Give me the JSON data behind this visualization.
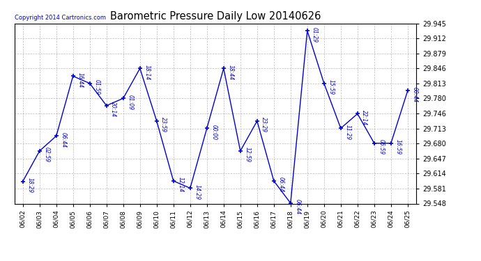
{
  "title": "Barometric Pressure Daily Low 20140626",
  "copyright": "Copyright 2014 Cartronics.com",
  "data_points": [
    {
      "date": "06/02",
      "time": "18:29",
      "value": 29.597
    },
    {
      "date": "06/03",
      "time": "02:59",
      "value": 29.664
    },
    {
      "date": "06/04",
      "time": "06:44",
      "value": 29.697
    },
    {
      "date": "06/05",
      "time": "16:44",
      "value": 29.829
    },
    {
      "date": "06/06",
      "time": "01:59",
      "value": 29.813
    },
    {
      "date": "06/07",
      "time": "20:14",
      "value": 29.764
    },
    {
      "date": "06/08",
      "time": "01:09",
      "value": 29.78
    },
    {
      "date": "06/09",
      "time": "18:14",
      "value": 29.846
    },
    {
      "date": "06/10",
      "time": "23:59",
      "value": 29.73
    },
    {
      "date": "06/11",
      "time": "12:14",
      "value": 29.598
    },
    {
      "date": "06/12",
      "time": "14:29",
      "value": 29.582
    },
    {
      "date": "06/13",
      "time": "00:00",
      "value": 29.714
    },
    {
      "date": "06/14",
      "time": "18:44",
      "value": 29.846
    },
    {
      "date": "06/15",
      "time": "12:59",
      "value": 29.664
    },
    {
      "date": "06/16",
      "time": "23:29",
      "value": 29.73
    },
    {
      "date": "06/17",
      "time": "06:44",
      "value": 29.598
    },
    {
      "date": "06/18",
      "time": "06:44",
      "value": 29.549
    },
    {
      "date": "06/19",
      "time": "01:29",
      "value": 29.929
    },
    {
      "date": "06/20",
      "time": "15:59",
      "value": 29.813
    },
    {
      "date": "06/21",
      "time": "11:29",
      "value": 29.714
    },
    {
      "date": "06/22",
      "time": "22:14",
      "value": 29.746
    },
    {
      "date": "06/23",
      "time": "06:59",
      "value": 29.681
    },
    {
      "date": "06/24",
      "time": "16:59",
      "value": 29.681
    },
    {
      "date": "06/25",
      "time": "00:44",
      "value": 29.797
    }
  ],
  "ylim": [
    29.548,
    29.945
  ],
  "yticks": [
    29.548,
    29.581,
    29.614,
    29.647,
    29.68,
    29.713,
    29.746,
    29.78,
    29.813,
    29.846,
    29.879,
    29.912,
    29.945
  ],
  "line_color": "#0000cc",
  "marker_color": "#0000cc",
  "background_color": "#ffffff",
  "grid_color": "#aaaaaa",
  "title_color": "#000000",
  "label_color": "#0000cc",
  "legend_bg": "#0000cc",
  "legend_text_color": "#ffffff",
  "fig_width": 6.9,
  "fig_height": 3.75,
  "dpi": 100
}
